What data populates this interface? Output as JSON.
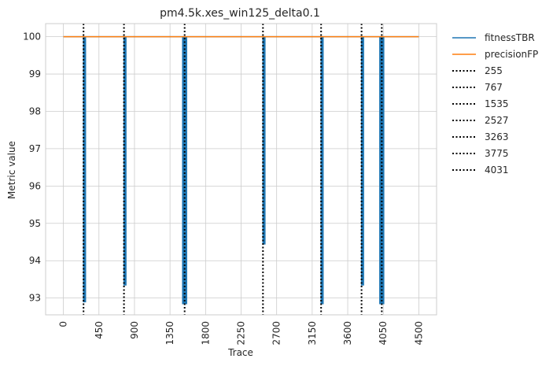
{
  "chart_data": {
    "type": "line",
    "title": "pm4.5k.xes_win125_delta0.1",
    "xlabel": "Trace",
    "ylabel": "Metric value",
    "xlim": [
      -225,
      4725
    ],
    "ylim": [
      92.55,
      100.35
    ],
    "xticks": [
      0,
      450,
      900,
      1350,
      1800,
      2250,
      2700,
      3150,
      3600,
      4050,
      4500
    ],
    "yticks": [
      93,
      94,
      95,
      96,
      97,
      98,
      99,
      100
    ],
    "grid": true,
    "legend_position": "outside-right",
    "series": [
      {
        "name": "fitnessTBR",
        "color": "#1f77b4",
        "dips": [
          {
            "x0": 255,
            "x1": 280,
            "min": 92.9
          },
          {
            "x0": 767,
            "x1": 792,
            "min": 93.35
          },
          {
            "x0": 1510,
            "x1": 1560,
            "min": 92.85
          },
          {
            "x0": 2527,
            "x1": 2552,
            "min": 94.45
          },
          {
            "x0": 3263,
            "x1": 3288,
            "min": 92.85
          },
          {
            "x0": 3775,
            "x1": 3800,
            "min": 93.35
          },
          {
            "x0": 4006,
            "x1": 4056,
            "min": 92.85
          }
        ],
        "baseline": 100,
        "x_end": 4500
      },
      {
        "name": "precisionFP",
        "color": "#ff7f0e",
        "x": [
          0,
          4500
        ],
        "y": [
          100,
          100
        ]
      }
    ],
    "vlines": [
      {
        "label": "255",
        "x": 255
      },
      {
        "label": "767",
        "x": 767
      },
      {
        "label": "1535",
        "x": 1535
      },
      {
        "label": "2527",
        "x": 2527
      },
      {
        "label": "3263",
        "x": 3263
      },
      {
        "label": "3775",
        "x": 3775
      },
      {
        "label": "4031",
        "x": 4031
      }
    ]
  }
}
